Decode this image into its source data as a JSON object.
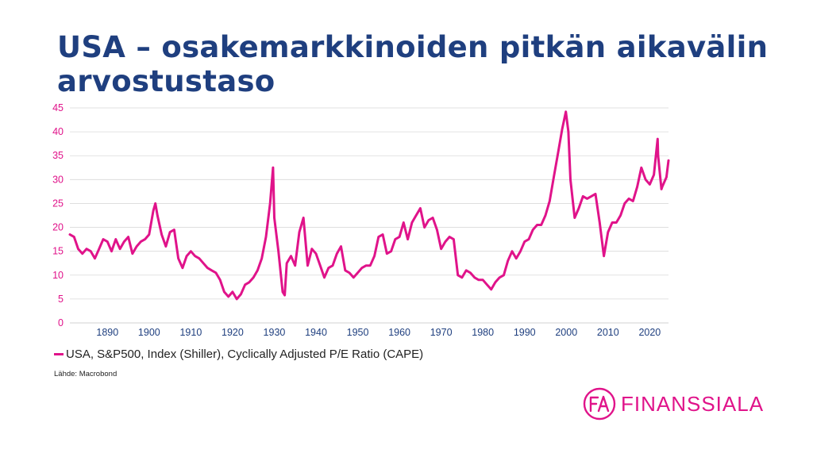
{
  "title": "USA – osakemarkkinoiden pitkän aikavälin arvostustaso",
  "source": "Lähde: Macrobond",
  "logo": {
    "text": "FINANSSIALA",
    "monogram": "FA",
    "icon": "finanssiala-logo-icon"
  },
  "colors": {
    "title": "#1f3f7f",
    "series": "#e0138a",
    "ticks_y": "#e0138a",
    "ticks_x": "#1f3f7f",
    "grid": "#d9d9d9"
  },
  "chart_data": {
    "type": "line",
    "title": "",
    "xlabel": "",
    "ylabel": "",
    "xlim": [
      1881,
      2024.5
    ],
    "ylim": [
      0,
      45
    ],
    "grid": "horizontal",
    "legend_position": "bottom-left",
    "xticks": [
      1890,
      1900,
      1910,
      1920,
      1930,
      1940,
      1950,
      1960,
      1970,
      1980,
      1990,
      2000,
      2010,
      2020
    ],
    "yticks": [
      0,
      5,
      10,
      15,
      20,
      25,
      30,
      35,
      40,
      45
    ],
    "series": [
      {
        "name": "USA, S&P500, Index (Shiller), Cyclically Adjusted P/E Ratio (CAPE)",
        "x": [
          1881,
          1882,
          1883,
          1884,
          1885,
          1886,
          1887,
          1888,
          1889,
          1890,
          1891,
          1892,
          1893,
          1894,
          1895,
          1896,
          1897,
          1898,
          1899,
          1900,
          1901,
          1901.5,
          1902,
          1903,
          1904,
          1905,
          1906,
          1907,
          1908,
          1909,
          1910,
          1911,
          1912,
          1913,
          1914,
          1915,
          1916,
          1917,
          1918,
          1919,
          1920,
          1921,
          1922,
          1923,
          1924,
          1925,
          1926,
          1927,
          1928,
          1929,
          1929.7,
          1930,
          1931,
          1932,
          1932.5,
          1933,
          1934,
          1935,
          1936,
          1937,
          1938,
          1939,
          1940,
          1941,
          1942,
          1943,
          1944,
          1945,
          1946,
          1947,
          1948,
          1949,
          1950,
          1951,
          1952,
          1953,
          1954,
          1955,
          1956,
          1957,
          1958,
          1959,
          1960,
          1961,
          1962,
          1963,
          1964,
          1965,
          1966,
          1967,
          1968,
          1969,
          1970,
          1971,
          1972,
          1973,
          1974,
          1975,
          1976,
          1977,
          1978,
          1979,
          1980,
          1981,
          1982,
          1983,
          1984,
          1985,
          1986,
          1987,
          1988,
          1989,
          1990,
          1991,
          1992,
          1993,
          1994,
          1995,
          1996,
          1997,
          1998,
          1999,
          1999.9,
          2000.5,
          2001,
          2002,
          2003,
          2004,
          2005,
          2006,
          2007,
          2008,
          2009,
          2010,
          2011,
          2012,
          2013,
          2014,
          2015,
          2016,
          2017,
          2018,
          2019,
          2020,
          2021,
          2021.9,
          2022,
          2022.8,
          2023,
          2024,
          2024.5
        ],
        "values": [
          18.5,
          18.0,
          15.5,
          14.5,
          15.5,
          15.0,
          13.5,
          15.5,
          17.5,
          17.0,
          15.0,
          17.5,
          15.5,
          17.0,
          18.0,
          14.5,
          16.0,
          17.0,
          17.5,
          18.5,
          23.5,
          25.0,
          22.5,
          18.5,
          16.0,
          19.0,
          19.5,
          13.5,
          11.5,
          14.0,
          15.0,
          14.0,
          13.5,
          12.5,
          11.5,
          11.0,
          10.5,
          9.0,
          6.5,
          5.5,
          6.5,
          5.0,
          6.0,
          8.0,
          8.5,
          9.5,
          11.0,
          13.5,
          18.0,
          25.0,
          32.5,
          22.0,
          15.0,
          6.5,
          5.8,
          12.5,
          14.0,
          12.0,
          19.0,
          22.0,
          12.0,
          15.5,
          14.5,
          12.0,
          9.5,
          11.5,
          12.0,
          14.5,
          16.0,
          11.0,
          10.5,
          9.5,
          10.5,
          11.5,
          12.0,
          12.0,
          14.0,
          18.0,
          18.5,
          14.5,
          15.0,
          17.5,
          18.0,
          21.0,
          17.5,
          21.0,
          22.5,
          24.0,
          20.0,
          21.5,
          22.0,
          19.5,
          15.5,
          17.0,
          18.0,
          17.5,
          10.0,
          9.5,
          11.0,
          10.5,
          9.5,
          9.0,
          9.0,
          8.0,
          7.0,
          8.5,
          9.5,
          10.0,
          13.0,
          15.0,
          13.5,
          15.0,
          17.0,
          17.5,
          19.5,
          20.5,
          20.5,
          22.5,
          25.5,
          30.5,
          35.5,
          40.5,
          44.2,
          40.0,
          30.0,
          22.0,
          24.0,
          26.5,
          26.0,
          26.5,
          27.0,
          21.0,
          14.0,
          19.0,
          21.0,
          21.0,
          22.5,
          25.0,
          26.0,
          25.5,
          28.5,
          32.5,
          30.0,
          29.0,
          31.0,
          38.5,
          35.0,
          28.0,
          28.5,
          30.5,
          34.0
        ]
      }
    ]
  }
}
